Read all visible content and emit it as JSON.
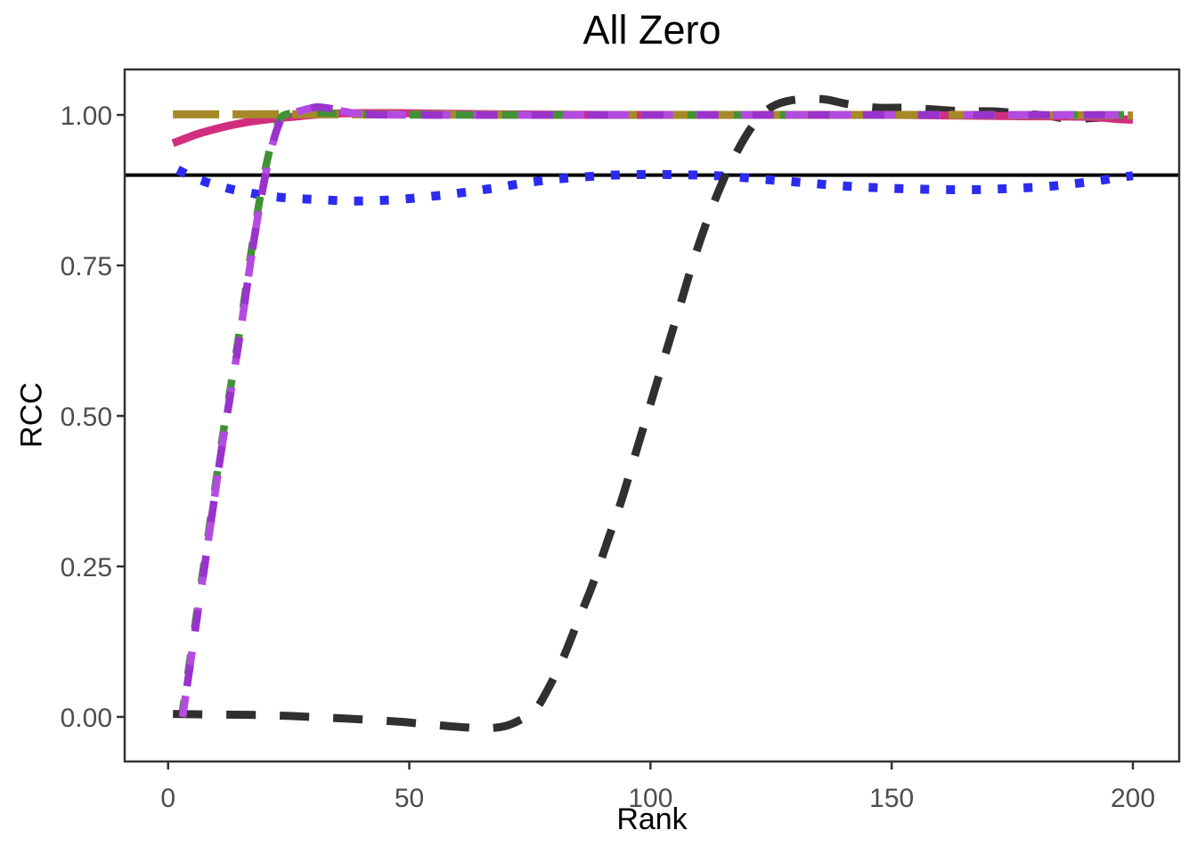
{
  "figure": {
    "title": "All Zero"
  },
  "chart_data": {
    "type": "line",
    "title": "All Zero",
    "xlabel": "Rank",
    "ylabel": "RCC",
    "xlim": [
      -9,
      209.6
    ],
    "ylim": [
      -0.074,
      1.0755
    ],
    "grid": "off",
    "legend": "none",
    "panel_border_color": "#333333",
    "tick_color": "#333333",
    "tick_label_color": "#4d4d4d",
    "x_ticks": [
      {
        "value": 0,
        "label": "0"
      },
      {
        "value": 50,
        "label": "50"
      },
      {
        "value": 100,
        "label": "100"
      },
      {
        "value": 150,
        "label": "150"
      },
      {
        "value": 200,
        "label": "200"
      }
    ],
    "y_ticks": [
      {
        "value": 0.0,
        "label": "0.00"
      },
      {
        "value": 0.25,
        "label": "0.25"
      },
      {
        "value": 0.5,
        "label": "0.50"
      },
      {
        "value": 0.75,
        "label": "0.75"
      },
      {
        "value": 1.0,
        "label": "1.00"
      }
    ],
    "reference_line": {
      "y": 0.9,
      "color": "#000000",
      "width": 4
    },
    "series": [
      {
        "name": "blue-dotted",
        "color": "#2b2bf0",
        "width": 10,
        "dash": "10 19",
        "dashoffset": 0,
        "points": [
          [
            2,
            0.909
          ],
          [
            5,
            0.897
          ],
          [
            8,
            0.888
          ],
          [
            11,
            0.881
          ],
          [
            14,
            0.875
          ],
          [
            18,
            0.869
          ],
          [
            22,
            0.864
          ],
          [
            27,
            0.861
          ],
          [
            32,
            0.859
          ],
          [
            38,
            0.857
          ],
          [
            44,
            0.858
          ],
          [
            50,
            0.861
          ],
          [
            56,
            0.866
          ],
          [
            62,
            0.872
          ],
          [
            68,
            0.879
          ],
          [
            74,
            0.887
          ],
          [
            80,
            0.893
          ],
          [
            86,
            0.897
          ],
          [
            92,
            0.9
          ],
          [
            98,
            0.901
          ],
          [
            104,
            0.901
          ],
          [
            110,
            0.9
          ],
          [
            116,
            0.898
          ],
          [
            122,
            0.894
          ],
          [
            128,
            0.89
          ],
          [
            134,
            0.886
          ],
          [
            140,
            0.882
          ],
          [
            147,
            0.879
          ],
          [
            154,
            0.877
          ],
          [
            161,
            0.876
          ],
          [
            168,
            0.876
          ],
          [
            175,
            0.878
          ],
          [
            182,
            0.881
          ],
          [
            188,
            0.886
          ],
          [
            193,
            0.891
          ],
          [
            197,
            0.896
          ],
          [
            200,
            0.899
          ]
        ]
      },
      {
        "name": "black-dashed",
        "color": "#303030",
        "width": 9,
        "dash": "33 27",
        "dashoffset": 0,
        "points": [
          [
            1,
            0.005
          ],
          [
            10,
            0.004
          ],
          [
            20,
            0.003
          ],
          [
            30,
            0.0
          ],
          [
            40,
            -0.004
          ],
          [
            48,
            -0.008
          ],
          [
            55,
            -0.013
          ],
          [
            61,
            -0.017
          ],
          [
            66,
            -0.019
          ],
          [
            70,
            -0.015
          ],
          [
            73,
            -0.005
          ],
          [
            76,
            0.01
          ],
          [
            79,
            0.05
          ],
          [
            82,
            0.1
          ],
          [
            85,
            0.16
          ],
          [
            88,
            0.22
          ],
          [
            91,
            0.29
          ],
          [
            94,
            0.36
          ],
          [
            97,
            0.44
          ],
          [
            100,
            0.52
          ],
          [
            103,
            0.6
          ],
          [
            106,
            0.68
          ],
          [
            109,
            0.76
          ],
          [
            112,
            0.83
          ],
          [
            115,
            0.89
          ],
          [
            118,
            0.94
          ],
          [
            121,
            0.98
          ],
          [
            124,
            1.007
          ],
          [
            127,
            1.02
          ],
          [
            131,
            1.026
          ],
          [
            136,
            1.026
          ],
          [
            141,
            1.018
          ],
          [
            147,
            1.012
          ],
          [
            153,
            1.012
          ],
          [
            159,
            1.009
          ],
          [
            165,
            1.006
          ],
          [
            171,
            1.006
          ],
          [
            177,
            1.002
          ],
          [
            182,
            0.999
          ],
          [
            187,
            0.993
          ],
          [
            192,
            0.995
          ],
          [
            196,
            0.996
          ],
          [
            200,
            0.994
          ]
        ]
      },
      {
        "name": "pink-solid",
        "color": "#d12e7e",
        "width": 9,
        "dash": "",
        "dashoffset": 0,
        "points": [
          [
            1,
            0.953
          ],
          [
            3,
            0.959
          ],
          [
            6,
            0.968
          ],
          [
            9,
            0.975
          ],
          [
            12,
            0.981
          ],
          [
            15,
            0.986
          ],
          [
            18,
            0.99
          ],
          [
            22,
            0.994
          ],
          [
            26,
            0.997
          ],
          [
            30,
            1.0
          ],
          [
            34,
            1.002
          ],
          [
            40,
            1.003
          ],
          [
            48,
            1.003
          ],
          [
            58,
            1.002
          ],
          [
            70,
            1.001
          ],
          [
            90,
            1.0
          ],
          [
            120,
            1.0
          ],
          [
            150,
            1.0
          ],
          [
            175,
            0.998
          ],
          [
            190,
            0.997
          ],
          [
            197,
            0.993
          ],
          [
            200,
            0.992
          ]
        ]
      },
      {
        "name": "gold-longdash",
        "color": "#a68a28",
        "width": 9,
        "dash": "52 15",
        "dashoffset": 0,
        "points": [
          [
            1,
            1.001
          ],
          [
            40,
            1.001
          ],
          [
            80,
            1.0
          ],
          [
            120,
            1.0
          ],
          [
            160,
            1.0
          ],
          [
            200,
            0.999
          ]
        ]
      },
      {
        "name": "green-dashed",
        "color": "#419235",
        "width": 8.5,
        "dash": "22 30",
        "dashoffset": 10,
        "points": [
          [
            3,
            0.01
          ],
          [
            5,
            0.12
          ],
          [
            7,
            0.23
          ],
          [
            9,
            0.34
          ],
          [
            11,
            0.45
          ],
          [
            13,
            0.55
          ],
          [
            15,
            0.65
          ],
          [
            17,
            0.76
          ],
          [
            19,
            0.86
          ],
          [
            21,
            0.94
          ],
          [
            23,
            0.99
          ],
          [
            25,
            1.002
          ],
          [
            29,
            1.004
          ],
          [
            34,
            1.003
          ],
          [
            40,
            1.001
          ],
          [
            60,
            1.0
          ],
          [
            100,
            1.0
          ],
          [
            150,
            1.0
          ],
          [
            200,
            1.0
          ]
        ]
      },
      {
        "name": "orchid-dashed",
        "color": "#b44be0",
        "width": 8.5,
        "dash": "24 26",
        "dashoffset": 0,
        "points": [
          [
            3,
            0.0
          ],
          [
            5,
            0.11
          ],
          [
            7,
            0.22
          ],
          [
            9,
            0.33
          ],
          [
            11,
            0.44
          ],
          [
            13,
            0.54
          ],
          [
            15,
            0.64
          ],
          [
            17,
            0.75
          ],
          [
            19,
            0.85
          ],
          [
            21,
            0.93
          ],
          [
            23,
            0.985
          ],
          [
            25,
            1.0
          ],
          [
            28,
            1.008
          ],
          [
            31,
            1.013
          ],
          [
            34,
            1.01
          ],
          [
            37,
            1.005
          ],
          [
            40,
            1.002
          ],
          [
            50,
            1.0
          ],
          [
            100,
            1.0
          ],
          [
            150,
            1.0
          ],
          [
            200,
            1.0
          ]
        ]
      },
      {
        "name": "purple-dashed",
        "color": "#9933cc",
        "width": 8.5,
        "dash": "24 38",
        "dashoffset": 27,
        "points": [
          [
            3,
            0.0
          ],
          [
            5,
            0.11
          ],
          [
            7,
            0.22
          ],
          [
            9,
            0.33
          ],
          [
            11,
            0.44
          ],
          [
            13,
            0.54
          ],
          [
            15,
            0.64
          ],
          [
            17,
            0.75
          ],
          [
            19,
            0.85
          ],
          [
            21,
            0.93
          ],
          [
            23,
            0.985
          ],
          [
            25,
            1.0
          ],
          [
            28,
            1.008
          ],
          [
            31,
            1.013
          ],
          [
            34,
            1.01
          ],
          [
            37,
            1.005
          ],
          [
            40,
            1.002
          ],
          [
            50,
            1.0
          ],
          [
            100,
            1.0
          ],
          [
            150,
            1.0
          ],
          [
            200,
            1.0
          ]
        ]
      }
    ]
  }
}
